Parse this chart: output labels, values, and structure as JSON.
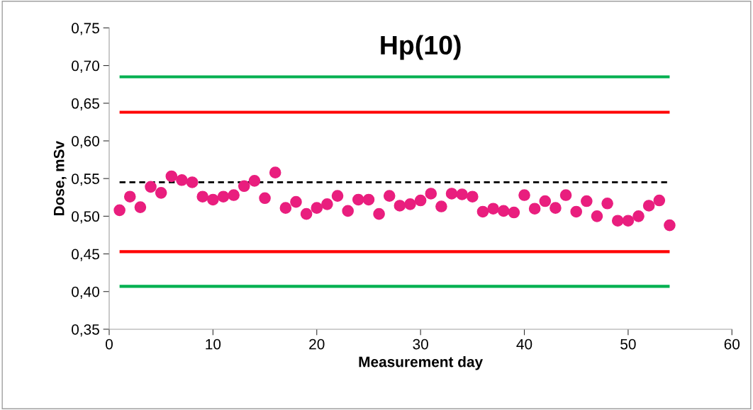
{
  "chart_data": {
    "type": "scatter",
    "title": "Hp(10)",
    "xlabel": "Measurement day",
    "ylabel": "Dose, mSv",
    "x": [
      1,
      2,
      3,
      4,
      5,
      6,
      7,
      8,
      9,
      10,
      11,
      12,
      13,
      14,
      15,
      16,
      17,
      18,
      19,
      20,
      21,
      22,
      23,
      24,
      25,
      26,
      27,
      28,
      29,
      30,
      31,
      32,
      33,
      34,
      35,
      36,
      37,
      38,
      39,
      40,
      41,
      42,
      43,
      44,
      45,
      46,
      47,
      48,
      49,
      50,
      51,
      52,
      53,
      54
    ],
    "series": [
      {
        "color": "#e91e7e",
        "values": [
          0.508,
          0.526,
          0.512,
          0.539,
          0.531,
          0.553,
          0.548,
          0.545,
          0.526,
          0.522,
          0.526,
          0.528,
          0.54,
          0.547,
          0.524,
          0.558,
          0.511,
          0.519,
          0.503,
          0.511,
          0.516,
          0.527,
          0.507,
          0.522,
          0.522,
          0.503,
          0.527,
          0.514,
          0.516,
          0.521,
          0.53,
          0.513,
          0.53,
          0.529,
          0.526,
          0.506,
          0.51,
          0.507,
          0.505,
          0.528,
          0.51,
          0.52,
          0.511,
          0.528,
          0.506,
          0.52,
          0.5,
          0.517,
          0.494,
          0.494,
          0.5,
          0.514,
          0.521,
          0.488
        ]
      }
    ],
    "marker": "circle",
    "ref_lines": [
      {
        "axis": "y",
        "value": 0.685,
        "color": "#00b050",
        "line_style": "solid"
      },
      {
        "axis": "y",
        "value": 0.638,
        "color": "#ff0000",
        "line_style": "solid"
      },
      {
        "axis": "y",
        "value": 0.545,
        "color": "#000000",
        "line_style": "dashed"
      },
      {
        "axis": "y",
        "value": 0.453,
        "color": "#ff0000",
        "line_style": "solid"
      },
      {
        "axis": "y",
        "value": 0.407,
        "color": "#00b050",
        "line_style": "solid"
      }
    ],
    "xlim": [
      0,
      60
    ],
    "xticks": [
      0,
      10,
      20,
      30,
      40,
      50,
      60
    ],
    "ylim": [
      0.35,
      0.75
    ],
    "yticks": [
      {
        "value": 0.35,
        "label": "0,35"
      },
      {
        "value": 0.4,
        "label": "0,40"
      },
      {
        "value": 0.45,
        "label": "0,45"
      },
      {
        "value": 0.5,
        "label": "0,50"
      },
      {
        "value": 0.55,
        "label": "0,55"
      },
      {
        "value": 0.6,
        "label": "0,60"
      },
      {
        "value": 0.65,
        "label": "0,65"
      },
      {
        "value": 0.7,
        "label": "0,70"
      },
      {
        "value": 0.75,
        "label": "0,75"
      }
    ],
    "grid": false,
    "legend": false
  }
}
